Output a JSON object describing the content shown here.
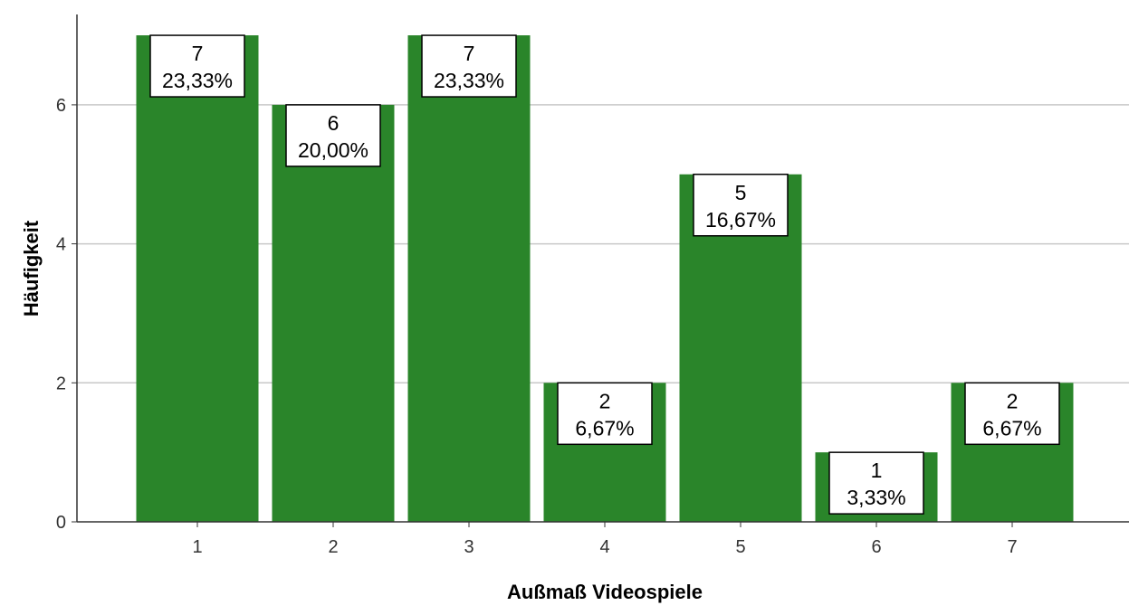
{
  "chart_data": {
    "type": "bar",
    "categories": [
      "1",
      "2",
      "3",
      "4",
      "5",
      "6",
      "7"
    ],
    "values": [
      7,
      6,
      7,
      2,
      5,
      1,
      2
    ],
    "percent_labels": [
      "23,33%",
      "20,00%",
      "23,33%",
      "6,67%",
      "16,67%",
      "3,33%",
      "6,67%"
    ],
    "xlabel": "Außmaß Videospiele",
    "ylabel": "Häufigkeit",
    "ylim": [
      0,
      7.3
    ],
    "yticks": [
      0,
      2,
      4,
      6
    ],
    "grid": true,
    "bar_color": "#2a852a",
    "grid_color": "#c8c8c8"
  }
}
